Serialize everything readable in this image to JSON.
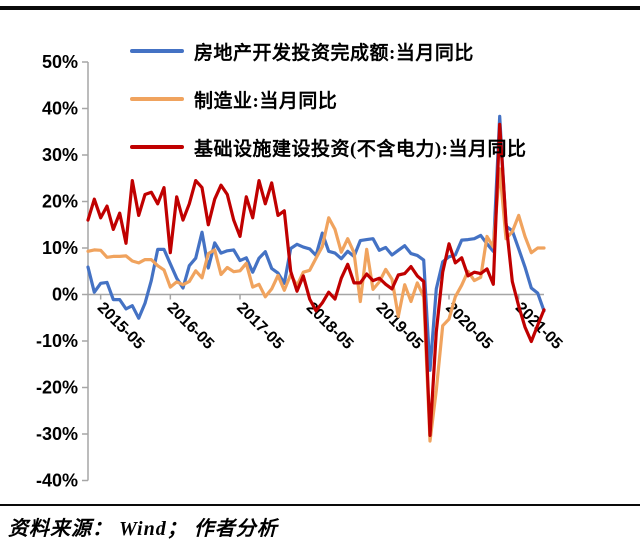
{
  "page": {
    "background": "#ffffff",
    "top_bar_color": "#0a0a0a"
  },
  "footer": {
    "source_text": "资料来源： Wind； 作者分析",
    "divider_color": "#0a0a0a"
  },
  "axis_style": {
    "axis_color": "#a6a6a6",
    "zero_line_color": "#a6a6a6",
    "tick_label_color": "#000000",
    "x_label_rotation_deg": 45
  },
  "chart_data": {
    "type": "line",
    "title": "",
    "xlabel": "",
    "ylabel": "",
    "y_unit": "%",
    "ylim": [
      -40,
      50
    ],
    "grid": "zero-line-only",
    "legend_position": "top-left-stacked",
    "y_ticks": [
      50,
      40,
      30,
      20,
      10,
      0,
      -10,
      -20,
      -30,
      -40
    ],
    "x_tick_labels": [
      "2015-05",
      "2016-05",
      "2017-05",
      "2018-05",
      "2019-05",
      "2020-05",
      "2021-05"
    ],
    "x_tick_indices": [
      2,
      13,
      24,
      35,
      46,
      57,
      68
    ],
    "x": [
      "2015-03",
      "2015-04",
      "2015-05",
      "2015-06",
      "2015-07",
      "2015-08",
      "2015-09",
      "2015-10",
      "2015-11",
      "2015-12",
      "2016-02",
      "2016-03",
      "2016-04",
      "2016-05",
      "2016-06",
      "2016-07",
      "2016-08",
      "2016-09",
      "2016-10",
      "2016-11",
      "2016-12",
      "2017-02",
      "2017-03",
      "2017-04",
      "2017-05",
      "2017-06",
      "2017-07",
      "2017-08",
      "2017-09",
      "2017-10",
      "2017-11",
      "2017-12",
      "2018-02",
      "2018-03",
      "2018-04",
      "2018-05",
      "2018-06",
      "2018-07",
      "2018-08",
      "2018-09",
      "2018-10",
      "2018-11",
      "2018-12",
      "2019-02",
      "2019-03",
      "2019-04",
      "2019-05",
      "2019-06",
      "2019-07",
      "2019-08",
      "2019-09",
      "2019-10",
      "2019-11",
      "2019-12",
      "2020-02",
      "2020-03",
      "2020-04",
      "2020-05",
      "2020-06",
      "2020-07",
      "2020-08",
      "2020-09",
      "2020-10",
      "2020-11",
      "2020-12",
      "2021-02",
      "2021-03",
      "2021-04",
      "2021-05",
      "2021-06",
      "2021-07",
      "2021-08",
      "2021-09"
    ],
    "series": [
      {
        "name": "房地产开发投资完成额:当月同比",
        "color": "#4472c4",
        "values": [
          5.9,
          0.5,
          2.4,
          2.6,
          -1.1,
          -1.1,
          -3.1,
          -2.4,
          -5.1,
          -1.9,
          3.0,
          9.7,
          9.7,
          6.6,
          3.5,
          1.4,
          6.2,
          7.8,
          13.4,
          5.7,
          11.1,
          8.9,
          9.4,
          9.6,
          7.3,
          7.9,
          4.8,
          7.8,
          9.2,
          5.6,
          4.6,
          2.4,
          9.9,
          10.8,
          10.2,
          9.8,
          8.4,
          13.2,
          9.3,
          8.9,
          7.7,
          9.3,
          8.2,
          11.6,
          11.8,
          12.0,
          9.5,
          10.1,
          8.5,
          9.5,
          10.5,
          8.8,
          8.4,
          7.4,
          -16.3,
          1.2,
          7.0,
          8.1,
          8.5,
          11.7,
          11.8,
          12.0,
          12.7,
          10.9,
          9.3,
          38.3,
          14.7,
          13.7,
          9.8,
          5.9,
          1.4,
          0.3,
          -3.5
        ]
      },
      {
        "name": "制造业:当月同比",
        "color": "#f0a35e",
        "values": [
          9.3,
          9.6,
          9.5,
          8.0,
          8.2,
          8.2,
          8.3,
          7.2,
          6.8,
          7.5,
          7.5,
          6.2,
          5.3,
          1.6,
          2.7,
          2.1,
          2.8,
          5.1,
          3.6,
          8.8,
          9.6,
          4.3,
          5.8,
          4.9,
          5.1,
          6.7,
          1.6,
          2.2,
          -0.5,
          1.2,
          4.1,
          0.9,
          4.3,
          1.9,
          4.8,
          5.2,
          7.8,
          10.3,
          16.5,
          14.0,
          9.1,
          12.0,
          9.0,
          -1.5,
          9.7,
          1.1,
          2.7,
          5.4,
          3.3,
          -4.7,
          2.1,
          -1.5,
          2.5,
          -0.5,
          -31.5,
          -20.6,
          -6.7,
          -5.3,
          -0.5,
          2.0,
          5.0,
          3.0,
          3.7,
          12.5,
          10.2,
          27.0,
          12.0,
          13.5,
          17.0,
          12.5,
          9.0,
          10.0,
          10.0
        ]
      },
      {
        "name": "基础设施建设投资(不含电力):当月同比",
        "color": "#c00000",
        "values": [
          16.0,
          20.5,
          16.5,
          19.0,
          14.0,
          17.5,
          11.0,
          24.5,
          17.0,
          21.5,
          22.0,
          19.5,
          23.0,
          9.0,
          21.0,
          16.0,
          19.5,
          24.5,
          23.0,
          15.0,
          20.5,
          23.5,
          21.5,
          16.0,
          12.5,
          21.0,
          16.5,
          24.5,
          19.5,
          24.0,
          17.0,
          18.0,
          5.0,
          0.7,
          4.0,
          -1.0,
          -3.5,
          -1.8,
          0.5,
          -1.0,
          3.5,
          6.5,
          2.5,
          2.5,
          4.4,
          3.0,
          3.5,
          2.2,
          1.2,
          4.2,
          4.5,
          6.0,
          4.0,
          2.8,
          -30.3,
          -8.0,
          4.8,
          10.9,
          6.8,
          7.9,
          4.0,
          4.8,
          4.5,
          5.5,
          2.2,
          36.6,
          15.5,
          2.8,
          -2.5,
          -7.0,
          -10.1,
          -6.6,
          -3.3
        ]
      }
    ]
  }
}
